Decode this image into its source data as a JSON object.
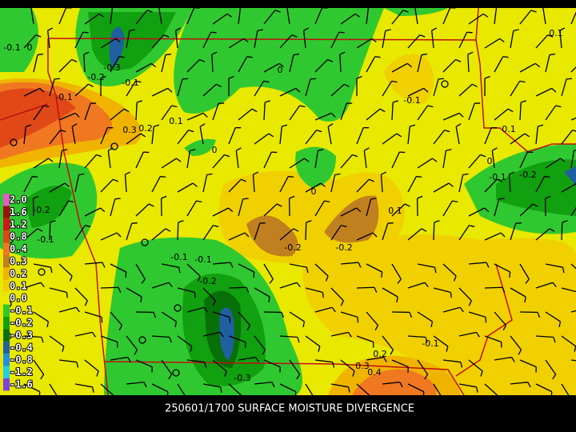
{
  "title": "250601/1700 SURFACE MOISTURE DIVERGENCE",
  "legend": [
    {
      "label": "2.0",
      "color": "#e060c0"
    },
    {
      "label": "1.6",
      "color": "#a01010"
    },
    {
      "label": "1.2",
      "color": "#d01818"
    },
    {
      "label": "0.8",
      "color": "#e04818"
    },
    {
      "label": "0.4",
      "color": "#f07820"
    },
    {
      "label": "0.3",
      "color": "#c08020"
    },
    {
      "label": "0.2",
      "color": "#f0b400"
    },
    {
      "label": "0.1",
      "color": "#f0d000"
    },
    {
      "label": "0.0",
      "color": "#e8e800"
    },
    {
      "label": "-0.1",
      "color": "#30c830"
    },
    {
      "label": "-0.2",
      "color": "#10a010"
    },
    {
      "label": "-0.3",
      "color": "#087008"
    },
    {
      "label": "-0.4",
      "color": "#2060a0"
    },
    {
      "label": "-0.8",
      "color": "#2090e0"
    },
    {
      "label": "-1.2",
      "color": "#20d0e0"
    },
    {
      "label": "-1.6",
      "color": "#8040e0"
    }
  ],
  "contour_labels": [
    "-0.1",
    "0",
    "-0.3",
    "-0.2",
    "-0.1",
    "-0.1",
    "0.3",
    "0.2",
    "0.1",
    "0",
    "0",
    "-0.1",
    "0",
    "0.1",
    "-0.2",
    "-0.2",
    "-0.2",
    "-0.1",
    "-0.1",
    "-0.1",
    "-0.2",
    "0.2",
    "0.3",
    "0.4",
    "-0.1",
    "-0.3",
    "0",
    "-0.1",
    "-0.2",
    "0.1",
    "0.1"
  ]
}
